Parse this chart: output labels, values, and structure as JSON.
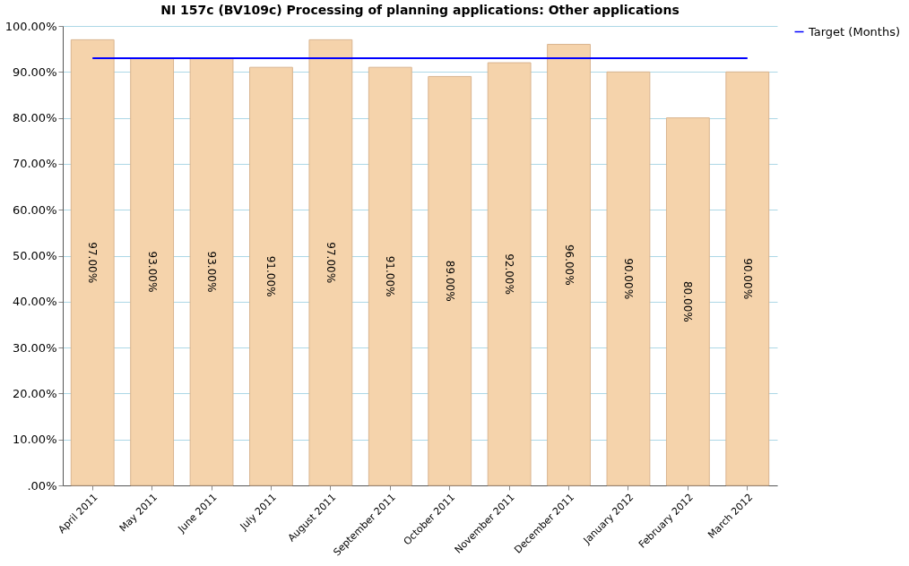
{
  "chart_data": {
    "type": "bar",
    "title": "NI 157c (BV109c) Processing of planning applications: Other applications",
    "categories": [
      "April 2011",
      "May 2011",
      "June 2011",
      "July 2011",
      "August 2011",
      "September 2011",
      "October 2011",
      "November 2011",
      "December 2011",
      "January 2012",
      "February 2012",
      "March 2012"
    ],
    "series": [
      {
        "color": "#f5d3ab",
        "values": [
          97,
          93,
          93,
          91,
          97,
          91,
          89,
          92,
          96,
          90,
          80,
          90
        ],
        "value_labels": [
          "97.00%",
          "93.00%",
          "93.00%",
          "91.00%",
          "97.00%",
          "91.00%",
          "89.00%",
          "92.00%",
          "96.00%",
          "90.00%",
          "80.00%",
          "90.00%"
        ]
      },
      {
        "name": "Target (Months)",
        "type": "line",
        "color": "#0000ff",
        "values": [
          93,
          93,
          93,
          93,
          93,
          93,
          93,
          93,
          93,
          93,
          93,
          93
        ]
      }
    ],
    "ylim": [
      0,
      100
    ],
    "yticks": [
      {
        "value": 0,
        "label": ".00%"
      },
      {
        "value": 10,
        "label": "10.00%"
      },
      {
        "value": 20,
        "label": "20.00%"
      },
      {
        "value": 30,
        "label": "30.00%"
      },
      {
        "value": 40,
        "label": "40.00%"
      },
      {
        "value": 50,
        "label": "50.00%"
      },
      {
        "value": 60,
        "label": "60.00%"
      },
      {
        "value": 70,
        "label": "70.00%"
      },
      {
        "value": 80,
        "label": "80.00%"
      },
      {
        "value": 90,
        "label": "90.00%"
      },
      {
        "value": 100,
        "label": "100.00%"
      }
    ],
    "grid": "y",
    "legend": "right"
  }
}
